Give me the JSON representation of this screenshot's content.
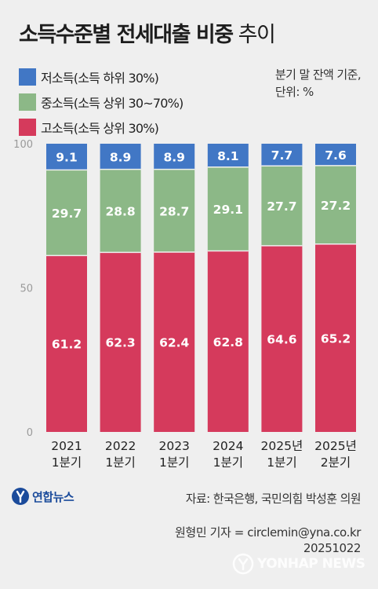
{
  "title": {
    "bold": "소득수준별 전세대출 비중",
    "light": "추이"
  },
  "note": {
    "line1": "분기 말 잔액 기준,",
    "line2": "단위: %"
  },
  "colors": {
    "low": "#4177c5",
    "mid": "#8cb887",
    "high": "#d53a5c"
  },
  "legend": [
    {
      "label": "저소득(소득 하위 30%)",
      "color": "#4177c5"
    },
    {
      "label": "중소득(소득 상위 30~70%)",
      "color": "#8cb887"
    },
    {
      "label": "고소득(소득 상위 30%)",
      "color": "#d53a5c"
    }
  ],
  "chart_data": {
    "type": "bar",
    "stacked": true,
    "categories": [
      [
        "2021",
        "1분기"
      ],
      [
        "2022",
        "1분기"
      ],
      [
        "2023",
        "1분기"
      ],
      [
        "2024",
        "1분기"
      ],
      [
        "2025년",
        "1분기"
      ],
      [
        "2025년",
        "2분기"
      ]
    ],
    "series": [
      {
        "name": "고소득(소득 상위 30%)",
        "color": "#d53a5c",
        "values": [
          61.2,
          62.3,
          62.4,
          62.8,
          64.6,
          65.2
        ]
      },
      {
        "name": "중소득(소득 상위 30~70%)",
        "color": "#8cb887",
        "values": [
          29.7,
          28.8,
          28.7,
          29.1,
          27.7,
          27.2
        ]
      },
      {
        "name": "저소득(소득 하위 30%)",
        "color": "#4177c5",
        "values": [
          9.1,
          8.9,
          8.9,
          8.1,
          7.7,
          7.6
        ]
      }
    ],
    "ylim": [
      0,
      100
    ],
    "yticks": [
      0,
      50,
      100
    ],
    "grid": false,
    "legend_position": "top-left"
  },
  "source": "자료: 한국은행, 국민의힘 박성훈 의원",
  "logo_text": "연합뉴스",
  "credit": {
    "line1": "원형민 기자 = circlemin@yna.co.kr",
    "line2": "20251022"
  },
  "watermark": "YONHAP NEWS"
}
